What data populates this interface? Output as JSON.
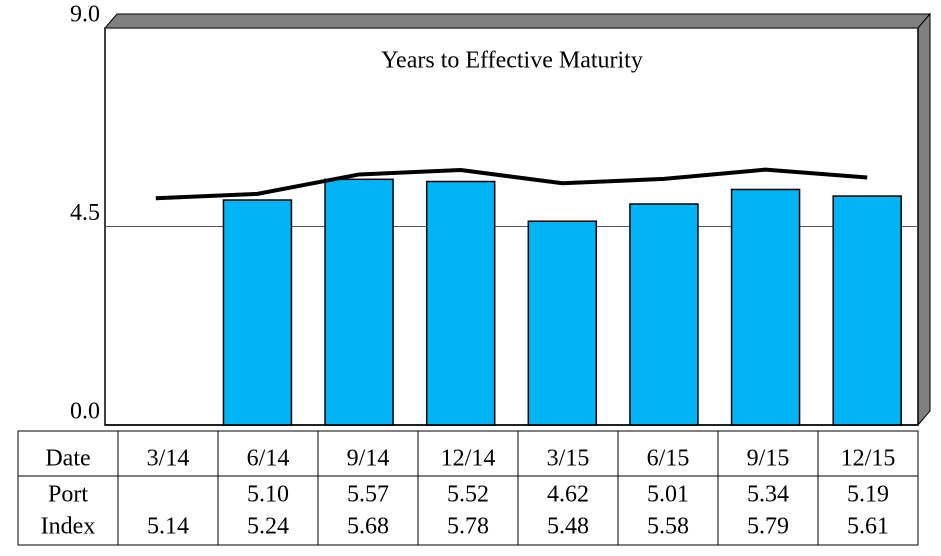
{
  "chart_data": {
    "type": "bar",
    "title": "Years to Effective Maturity",
    "xlabel": "Date",
    "categories": [
      "3/14",
      "6/14",
      "9/14",
      "12/14",
      "3/15",
      "6/15",
      "9/15",
      "12/15"
    ],
    "series": [
      {
        "name": "Port",
        "type": "bar",
        "color": "#00b4f5",
        "values": [
          null,
          5.1,
          5.57,
          5.52,
          4.62,
          5.01,
          5.34,
          5.19
        ],
        "value_labels": [
          null,
          "5.10",
          "5.57",
          "5.52",
          "4.62",
          "5.01",
          "5.34",
          "5.19"
        ]
      },
      {
        "name": "Index",
        "type": "line",
        "color": "#000000",
        "values": [
          5.14,
          5.24,
          5.68,
          5.78,
          5.48,
          5.58,
          5.79,
          5.61
        ]
      }
    ],
    "ylim": [
      0,
      9
    ],
    "yticks": [
      {
        "value": 0,
        "label": "0.0"
      },
      4.5,
      {
        "value": 9,
        "label": "9.0"
      }
    ],
    "grid": true
  }
}
